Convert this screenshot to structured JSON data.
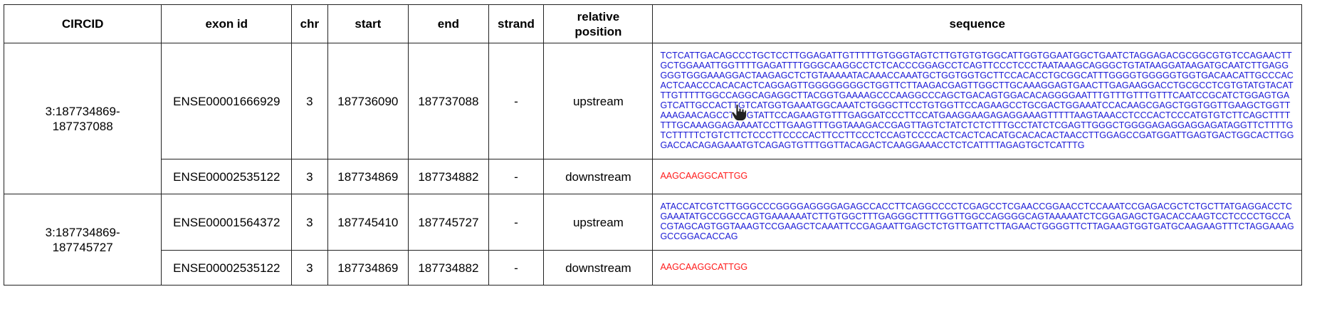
{
  "table": {
    "headers": [
      "CIRCID",
      "exon id",
      "chr",
      "start",
      "end",
      "strand",
      "relative position",
      "sequence"
    ],
    "header_relative_line1": "relative",
    "header_relative_line2": "position",
    "groups": [
      {
        "circid_line1": "3:187734869-",
        "circid_line2": "187737088",
        "rows": [
          {
            "exon_id": "ENSE00001666929",
            "chr": "3",
            "start": "187736090",
            "end": "187737088",
            "strand": "-",
            "relative_position": "upstream",
            "sequence": "TCTCATTGACAGCCCTGCTCCTTGGAGATTGTTTTTGTGGGTAGTCTTGTGTGTGGCATTGGTGGAATGGCTGAATCTAGGAGACGCGGCGTGTCCAGAACTTGCTGGAAATTGGTTTTGAGATTTTGGGCAAGGCCTCTCACCCGGAGCCTCAGTTCCCTCCCTAATAAAGCAGGGCTGTATAAGGATAAGATGCAATCTTGAGGGGGTGGGAAAGGACTAAGAGCTCTGTAAAAATACAAACCAAATGCTGGTGGTGCTTCCACACCTGCGGCATTTGGGGTGGGGGTGGTGACAACATTGCCCACACTCAACCCACACACTCAGGAGTTGGGGGGGGCTGGTTCTTAAGACGAGTTGGCTTGCAAAGGAGTGAACTTGAGAAGGACCTGCGCCTCGTGTATGTACATTTGTTTTTGGCCAGGCAGAGGCTTACGGTGAAAAGCCCAAGGCCCAGCTGACAGTGGACACAGGGGAATTTGTTTGTTTGTTTCAATCCGCATCTGGAGTGAGTCATTGCCACTTGTCATGGTGAAATGGCAAATCTGGGCTTCCTGTGGTTCCAGAAGCCTGCGACTGGAAATCCACAAGCGAGCTGGTGGTTGAAGCTGGTTAAAGAACAGCCTAGGTATTCCAGAAGTGTTTGAGGATCCCTTCCATGAAGGAAGAGAGGAAAGTTTTTAAGTAAACCTCCCACTCCCATGTGTCTTCAGCTTTTTTTGCAAAGGAGAAAATCCTTGAAGTTTGGTAAAGACCGAGTTAGTCTATCTCTCTTTGCCTATCTCGAGTTGGGCTGGGGAGAGGAGGAGATAGGTTCTTTTGTCTTTTTCTGTCTTCTCCCTTCCCCACTTCCTTCCCTCCAGTCCCCACTCACTCACATGCACACACTAACCTTGGAGCCGATGGATTGAGTGACTGGCACTTGGGACCACAGAGAAATGTCAGAGTGTTTGGTTACAGACTCAAGGAAACCTCTCATTTTAGAGTGCTCATTTG",
            "color": "blue"
          },
          {
            "exon_id": "ENSE00002535122",
            "chr": "3",
            "start": "187734869",
            "end": "187734882",
            "strand": "-",
            "relative_position": "downstream",
            "sequence": "AAGCAAGGCATTGG",
            "color": "red"
          }
        ]
      },
      {
        "circid_line1": "3:187734869-",
        "circid_line2": "187745727",
        "rows": [
          {
            "exon_id": "ENSE00001564372",
            "chr": "3",
            "start": "187745410",
            "end": "187745727",
            "strand": "-",
            "relative_position": "upstream",
            "sequence": "ATACCATCGTCTTGGGCCCGGGGAGGGGAGAGCCACCTTCAGGCCCCTCGAGCCTCGAACCGGAACCTCCAAATCCGAGACGCTCTGCTTATGAGGACCTCGAAATATGCCGGCCAGTGAAAAAATCTTGTGGCTTTGAGGGCTTTTGGTTGGCCAGGGGCAGTAAAAATCTCGGAGAGCTGACACCAAGTCCTCCCCTGCCACGTAGCAGTGGTAAAGTCCGAAGCTCAAATTCCGAGAATTGAGCTCTGTTGATTCTTAGAACTGGGGTTCTTAGAAGTGGTGATGCAAGAAGTTTCTAGGAAAGGCCGGACACCAG",
            "color": "blue"
          },
          {
            "exon_id": "ENSE00002535122",
            "chr": "3",
            "start": "187734869",
            "end": "187734882",
            "strand": "-",
            "relative_position": "downstream",
            "sequence": "AAGCAAGGCATTGG",
            "color": "red"
          }
        ]
      }
    ]
  },
  "colors": {
    "upstream_seq": "#1a1ad6",
    "downstream_seq": "#ff1a1a",
    "border": "#222222"
  },
  "cursor": {
    "icon": "hand-pointer-icon"
  }
}
